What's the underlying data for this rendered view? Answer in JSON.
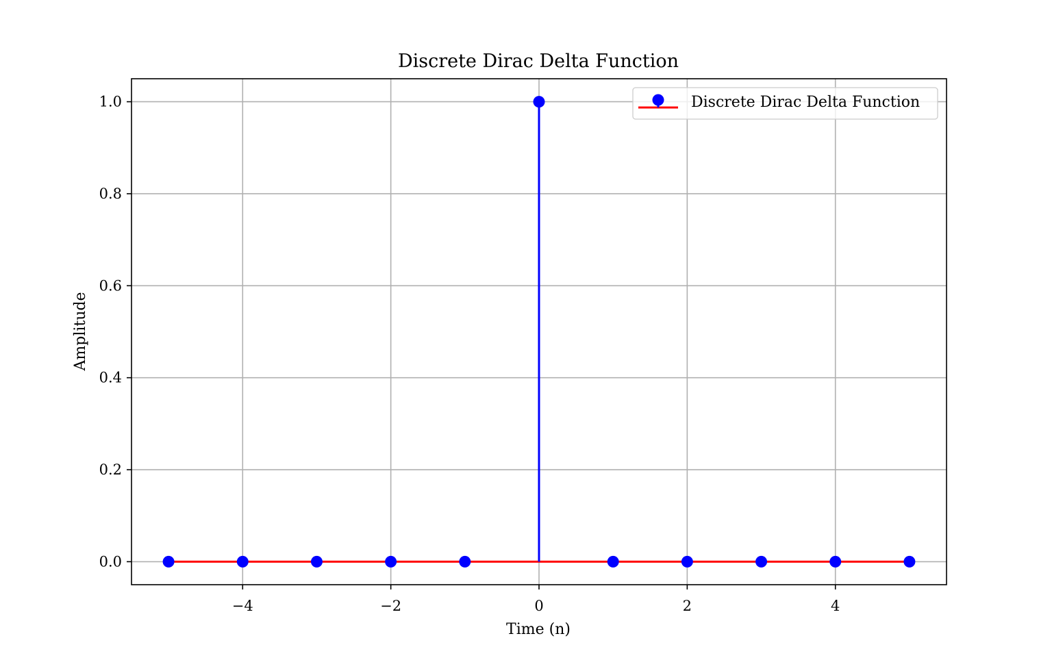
{
  "chart_data": {
    "type": "stem",
    "title": "Discrete Dirac Delta Function",
    "xlabel": "Time (n)",
    "ylabel": "Amplitude",
    "x": [
      -5,
      -4,
      -3,
      -2,
      -1,
      0,
      1,
      2,
      3,
      4,
      5
    ],
    "series": [
      {
        "name": "Discrete Dirac Delta Function",
        "values": [
          0,
          0,
          0,
          0,
          0,
          1,
          0,
          0,
          0,
          0,
          0
        ],
        "marker_color": "#0000ff",
        "stem_color": "#0000ff",
        "baseline_color": "#ff0000"
      }
    ],
    "xlim": [
      -5.5,
      5.5
    ],
    "ylim": [
      -0.05,
      1.05
    ],
    "xticks": [
      -4,
      -2,
      0,
      2,
      4
    ],
    "xtick_labels": [
      "−4",
      "−2",
      "0",
      "2",
      "4"
    ],
    "yticks": [
      0.0,
      0.2,
      0.4,
      0.6,
      0.8,
      1.0
    ],
    "ytick_labels": [
      "0.0",
      "0.2",
      "0.4",
      "0.6",
      "0.8",
      "1.0"
    ],
    "grid": true,
    "grid_color": "#b0b0b0",
    "legend_position": "upper right"
  }
}
